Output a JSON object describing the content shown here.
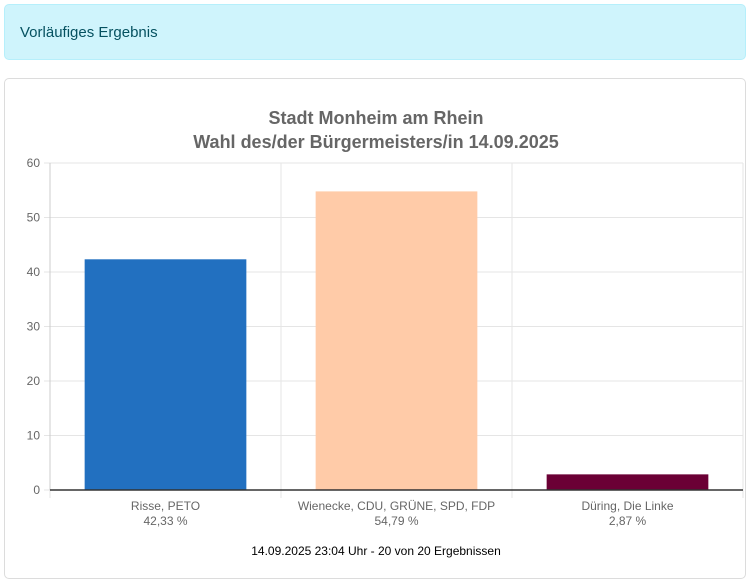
{
  "alert": {
    "text": "Vorläufiges Ergebnis"
  },
  "chart_data": {
    "type": "bar",
    "title": [
      "Stadt Monheim am Rhein",
      "Wahl des/der Bürgermeisters/in 14.09.2025"
    ],
    "categories": [
      "Risse, PETO",
      "Wienecke, CDU, GRÜNE, SPD, FDP",
      "Düring, Die Linke"
    ],
    "value_labels": [
      "42,33 %",
      "54,79 %",
      "2,87 %"
    ],
    "values": [
      42.33,
      54.79,
      2.87
    ],
    "colors": [
      "#2270c0",
      "#ffcba8",
      "#6b0035"
    ],
    "ylim": [
      0,
      60
    ],
    "yticks": [
      0,
      10,
      20,
      30,
      40,
      50,
      60
    ],
    "grid": true,
    "xlabel": "",
    "ylabel": "",
    "footnote": "14.09.2025 23:04 Uhr - 20 von 20 Ergebnissen"
  }
}
